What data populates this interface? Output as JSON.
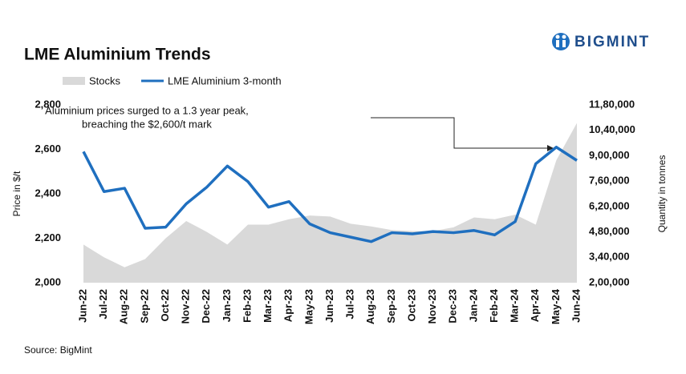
{
  "chart_data": {
    "type": "line",
    "title": "LME Aluminium Trends",
    "logo": "BIGMINT",
    "source": "Source: BigMint",
    "y_label": "Price in $/t",
    "y2_label": "Quantity in tonnes",
    "annotation": [
      "Aluminium prices surged to a 1.3 year peak,",
      "breaching the $2,600/t mark"
    ],
    "categories": [
      "Jun-22",
      "Jul-22",
      "Aug-22",
      "Sep-22",
      "Oct-22",
      "Nov-22",
      "Dec-22",
      "Jan-23",
      "Feb-23",
      "Mar-23",
      "Apr-23",
      "May-23",
      "Jun-23",
      "Jul-23",
      "Aug-23",
      "Sep-23",
      "Oct-23",
      "Nov-23",
      "Dec-23",
      "Jan-24",
      "Feb-24",
      "Mar-24",
      "Apr-24",
      "May-24",
      "Jun-24"
    ],
    "series": [
      {
        "name": "Stocks",
        "type": "area",
        "axis": "y2",
        "color": "#d9d9d9",
        "values": [
          410000,
          340000,
          285000,
          330000,
          445000,
          540000,
          480000,
          410000,
          520000,
          520000,
          550000,
          570000,
          565000,
          525000,
          510000,
          490000,
          485000,
          485000,
          505000,
          560000,
          550000,
          575000,
          520000,
          875000,
          1080000
        ]
      },
      {
        "name": "LME Aluminium 3-month",
        "type": "line",
        "color": "#1f6fbf",
        "values": [
          2590,
          2410,
          2425,
          2245,
          2250,
          2355,
          2430,
          2525,
          2455,
          2340,
          2365,
          2265,
          2225,
          2205,
          2185,
          2225,
          2220,
          2230,
          2225,
          2235,
          2215,
          2275,
          2535,
          2610,
          2550
        ]
      }
    ],
    "ylim": [
      2000,
      2800
    ],
    "yticks": [
      {
        "value": 2000,
        "label": "2,000"
      },
      {
        "value": 2200,
        "label": "2,200"
      },
      {
        "value": 2400,
        "label": "2,400"
      },
      {
        "value": 2600,
        "label": "2,600"
      },
      {
        "value": 2800,
        "label": "2,800"
      }
    ],
    "y2lim": [
      200000,
      1180000
    ],
    "y2ticks": [
      {
        "value": 200000,
        "label": "2,00,000"
      },
      {
        "value": 340000,
        "label": "3,40,000"
      },
      {
        "value": 480000,
        "label": "4,80,000"
      },
      {
        "value": 620000,
        "label": "6,20,000"
      },
      {
        "value": 760000,
        "label": "7,60,000"
      },
      {
        "value": 900000,
        "label": "9,00,000"
      },
      {
        "value": 1040000,
        "label": "10,40,000"
      },
      {
        "value": 1180000,
        "label": "11,80,000"
      }
    ],
    "grid": false
  }
}
